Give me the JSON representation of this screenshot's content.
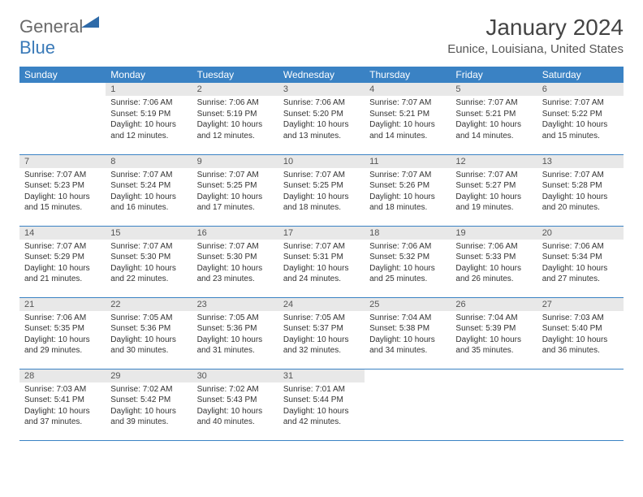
{
  "logo": {
    "general": "General",
    "blue": "Blue"
  },
  "title": "January 2024",
  "location": "Eunice, Louisiana, United States",
  "colors": {
    "header_bg": "#3a82c4",
    "header_text": "#ffffff",
    "daynum_bg": "#e8e8e8",
    "border": "#3a82c4",
    "logo_gray": "#6a6a6a",
    "logo_blue": "#3a7ab8"
  },
  "weekdays": [
    "Sunday",
    "Monday",
    "Tuesday",
    "Wednesday",
    "Thursday",
    "Friday",
    "Saturday"
  ],
  "weeks": [
    [
      null,
      {
        "n": "1",
        "sr": "Sunrise: 7:06 AM",
        "ss": "Sunset: 5:19 PM",
        "dl": "Daylight: 10 hours and 12 minutes."
      },
      {
        "n": "2",
        "sr": "Sunrise: 7:06 AM",
        "ss": "Sunset: 5:19 PM",
        "dl": "Daylight: 10 hours and 12 minutes."
      },
      {
        "n": "3",
        "sr": "Sunrise: 7:06 AM",
        "ss": "Sunset: 5:20 PM",
        "dl": "Daylight: 10 hours and 13 minutes."
      },
      {
        "n": "4",
        "sr": "Sunrise: 7:07 AM",
        "ss": "Sunset: 5:21 PM",
        "dl": "Daylight: 10 hours and 14 minutes."
      },
      {
        "n": "5",
        "sr": "Sunrise: 7:07 AM",
        "ss": "Sunset: 5:21 PM",
        "dl": "Daylight: 10 hours and 14 minutes."
      },
      {
        "n": "6",
        "sr": "Sunrise: 7:07 AM",
        "ss": "Sunset: 5:22 PM",
        "dl": "Daylight: 10 hours and 15 minutes."
      }
    ],
    [
      {
        "n": "7",
        "sr": "Sunrise: 7:07 AM",
        "ss": "Sunset: 5:23 PM",
        "dl": "Daylight: 10 hours and 15 minutes."
      },
      {
        "n": "8",
        "sr": "Sunrise: 7:07 AM",
        "ss": "Sunset: 5:24 PM",
        "dl": "Daylight: 10 hours and 16 minutes."
      },
      {
        "n": "9",
        "sr": "Sunrise: 7:07 AM",
        "ss": "Sunset: 5:25 PM",
        "dl": "Daylight: 10 hours and 17 minutes."
      },
      {
        "n": "10",
        "sr": "Sunrise: 7:07 AM",
        "ss": "Sunset: 5:25 PM",
        "dl": "Daylight: 10 hours and 18 minutes."
      },
      {
        "n": "11",
        "sr": "Sunrise: 7:07 AM",
        "ss": "Sunset: 5:26 PM",
        "dl": "Daylight: 10 hours and 18 minutes."
      },
      {
        "n": "12",
        "sr": "Sunrise: 7:07 AM",
        "ss": "Sunset: 5:27 PM",
        "dl": "Daylight: 10 hours and 19 minutes."
      },
      {
        "n": "13",
        "sr": "Sunrise: 7:07 AM",
        "ss": "Sunset: 5:28 PM",
        "dl": "Daylight: 10 hours and 20 minutes."
      }
    ],
    [
      {
        "n": "14",
        "sr": "Sunrise: 7:07 AM",
        "ss": "Sunset: 5:29 PM",
        "dl": "Daylight: 10 hours and 21 minutes."
      },
      {
        "n": "15",
        "sr": "Sunrise: 7:07 AM",
        "ss": "Sunset: 5:30 PM",
        "dl": "Daylight: 10 hours and 22 minutes."
      },
      {
        "n": "16",
        "sr": "Sunrise: 7:07 AM",
        "ss": "Sunset: 5:30 PM",
        "dl": "Daylight: 10 hours and 23 minutes."
      },
      {
        "n": "17",
        "sr": "Sunrise: 7:07 AM",
        "ss": "Sunset: 5:31 PM",
        "dl": "Daylight: 10 hours and 24 minutes."
      },
      {
        "n": "18",
        "sr": "Sunrise: 7:06 AM",
        "ss": "Sunset: 5:32 PM",
        "dl": "Daylight: 10 hours and 25 minutes."
      },
      {
        "n": "19",
        "sr": "Sunrise: 7:06 AM",
        "ss": "Sunset: 5:33 PM",
        "dl": "Daylight: 10 hours and 26 minutes."
      },
      {
        "n": "20",
        "sr": "Sunrise: 7:06 AM",
        "ss": "Sunset: 5:34 PM",
        "dl": "Daylight: 10 hours and 27 minutes."
      }
    ],
    [
      {
        "n": "21",
        "sr": "Sunrise: 7:06 AM",
        "ss": "Sunset: 5:35 PM",
        "dl": "Daylight: 10 hours and 29 minutes."
      },
      {
        "n": "22",
        "sr": "Sunrise: 7:05 AM",
        "ss": "Sunset: 5:36 PM",
        "dl": "Daylight: 10 hours and 30 minutes."
      },
      {
        "n": "23",
        "sr": "Sunrise: 7:05 AM",
        "ss": "Sunset: 5:36 PM",
        "dl": "Daylight: 10 hours and 31 minutes."
      },
      {
        "n": "24",
        "sr": "Sunrise: 7:05 AM",
        "ss": "Sunset: 5:37 PM",
        "dl": "Daylight: 10 hours and 32 minutes."
      },
      {
        "n": "25",
        "sr": "Sunrise: 7:04 AM",
        "ss": "Sunset: 5:38 PM",
        "dl": "Daylight: 10 hours and 34 minutes."
      },
      {
        "n": "26",
        "sr": "Sunrise: 7:04 AM",
        "ss": "Sunset: 5:39 PM",
        "dl": "Daylight: 10 hours and 35 minutes."
      },
      {
        "n": "27",
        "sr": "Sunrise: 7:03 AM",
        "ss": "Sunset: 5:40 PM",
        "dl": "Daylight: 10 hours and 36 minutes."
      }
    ],
    [
      {
        "n": "28",
        "sr": "Sunrise: 7:03 AM",
        "ss": "Sunset: 5:41 PM",
        "dl": "Daylight: 10 hours and 37 minutes."
      },
      {
        "n": "29",
        "sr": "Sunrise: 7:02 AM",
        "ss": "Sunset: 5:42 PM",
        "dl": "Daylight: 10 hours and 39 minutes."
      },
      {
        "n": "30",
        "sr": "Sunrise: 7:02 AM",
        "ss": "Sunset: 5:43 PM",
        "dl": "Daylight: 10 hours and 40 minutes."
      },
      {
        "n": "31",
        "sr": "Sunrise: 7:01 AM",
        "ss": "Sunset: 5:44 PM",
        "dl": "Daylight: 10 hours and 42 minutes."
      },
      null,
      null,
      null
    ]
  ]
}
